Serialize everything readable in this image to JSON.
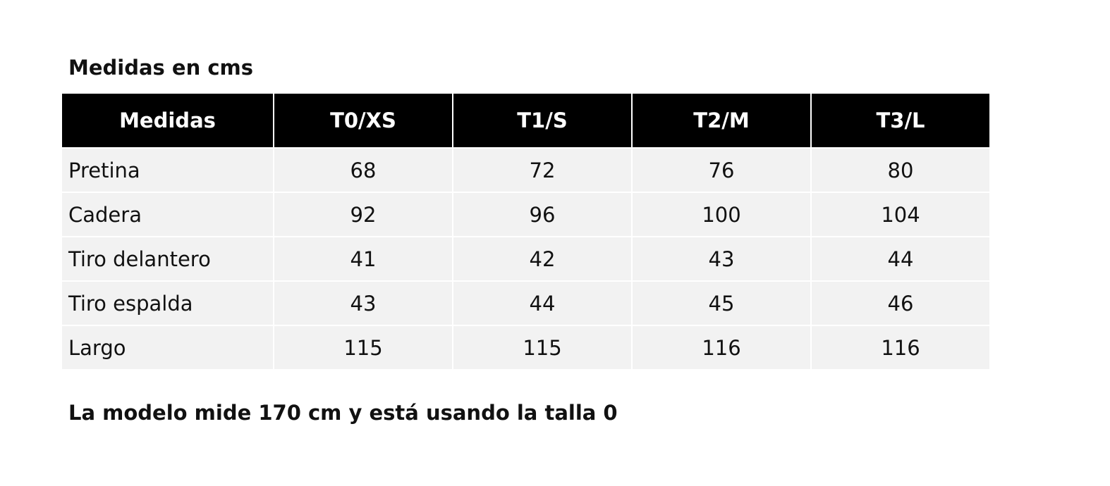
{
  "title": "Medidas en cms",
  "table": {
    "header": [
      "Medidas",
      "T0/XS",
      "T1/S",
      "T2/M",
      "T3/L"
    ],
    "rows": [
      [
        "Pretina",
        68,
        72,
        76,
        80
      ],
      [
        "Cadera",
        92,
        96,
        100,
        104
      ],
      [
        "Tiro delantero",
        41,
        42,
        43,
        44
      ],
      [
        "Tiro espalda",
        43,
        44,
        45,
        46
      ],
      [
        "Largo",
        115,
        115,
        116,
        116
      ]
    ]
  },
  "note": "La modelo mide 170 cm y está usando la talla 0"
}
